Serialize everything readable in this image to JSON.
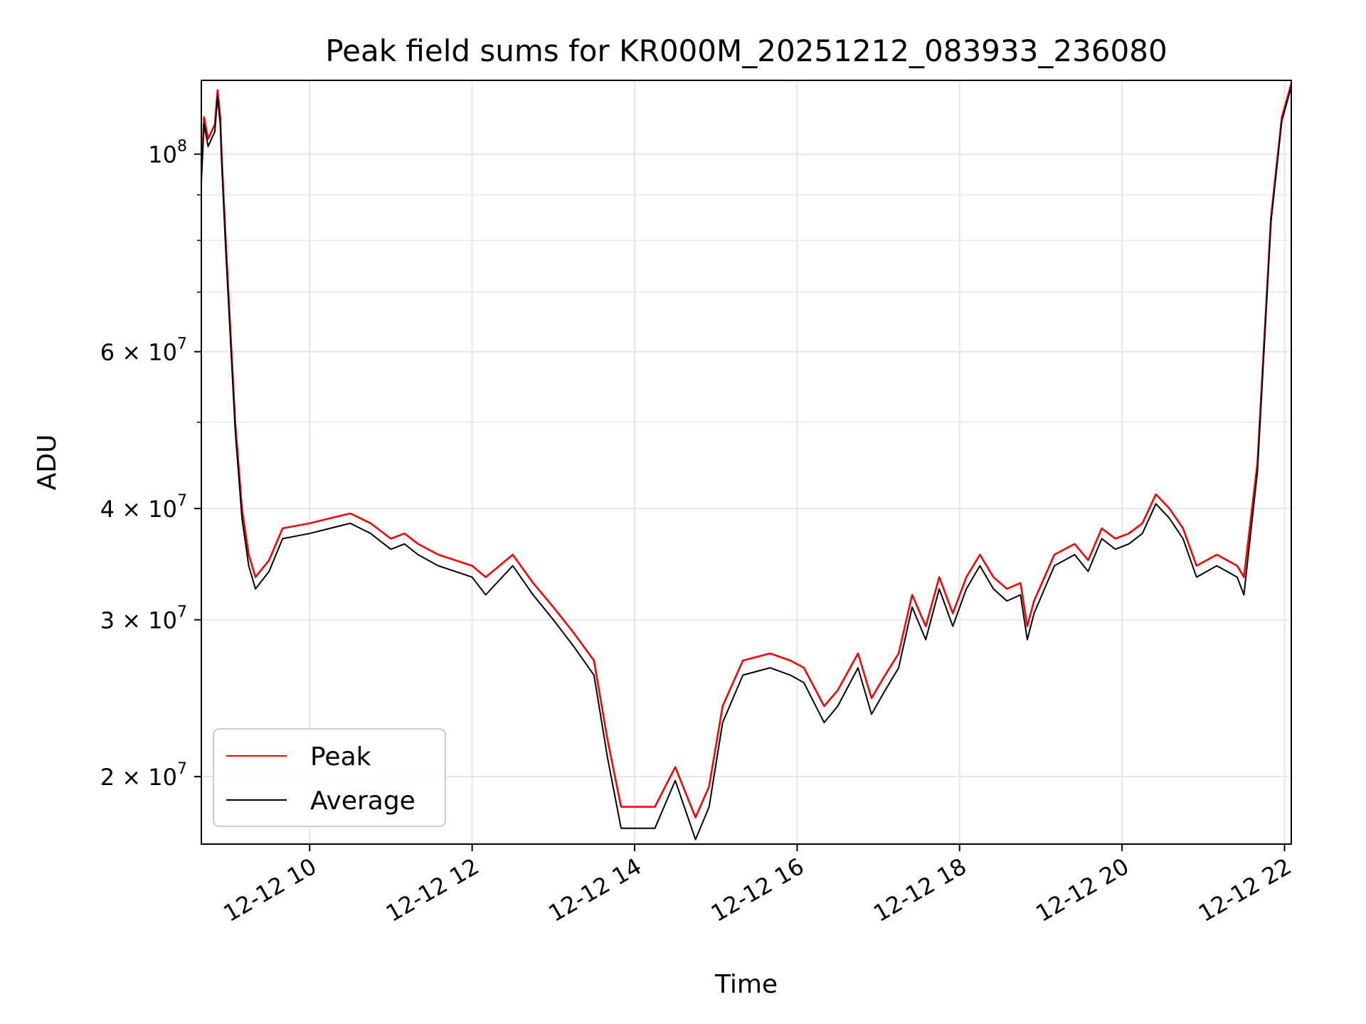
{
  "chart_data": {
    "type": "line",
    "title": "Peak field sums for KR000M_20251212_083933_236080",
    "xlabel": "Time",
    "ylabel": "ADU",
    "x_scale": "time",
    "y_scale": "log",
    "xlim": [
      "2025-12-12T08:40",
      "2025-12-12T22:05"
    ],
    "ylim": [
      16800000,
      121000000
    ],
    "grid": true,
    "legend_position": "lower-left",
    "x_ticks": [
      {
        "value": "2025-12-12T10:00",
        "label": "12-12 10"
      },
      {
        "value": "2025-12-12T12:00",
        "label": "12-12 12"
      },
      {
        "value": "2025-12-12T14:00",
        "label": "12-12 14"
      },
      {
        "value": "2025-12-12T16:00",
        "label": "12-12 16"
      },
      {
        "value": "2025-12-12T18:00",
        "label": "12-12 18"
      },
      {
        "value": "2025-12-12T20:00",
        "label": "12-12 20"
      },
      {
        "value": "2025-12-12T22:00",
        "label": "12-12 22"
      }
    ],
    "y_ticks": [
      {
        "value": 100000000,
        "mantissa": "",
        "base": "10",
        "exp": "8"
      },
      {
        "value": 60000000,
        "mantissa": "6 × ",
        "base": "10",
        "exp": "7"
      },
      {
        "value": 40000000,
        "mantissa": "4 × ",
        "base": "10",
        "exp": "7"
      },
      {
        "value": 30000000,
        "mantissa": "3 × ",
        "base": "10",
        "exp": "7"
      },
      {
        "value": 20000000,
        "mantissa": "2 × ",
        "base": "10",
        "exp": "7"
      }
    ],
    "y_minor_ticks": [
      50000000,
      70000000,
      80000000,
      90000000
    ],
    "series": [
      {
        "name": "Peak",
        "color": "#ff0000",
        "x": [
          "2025-12-12T08:40",
          "2025-12-12T08:42",
          "2025-12-12T08:45",
          "2025-12-12T08:50",
          "2025-12-12T08:52",
          "2025-12-12T08:54",
          "2025-12-12T08:55",
          "2025-12-12T08:58",
          "2025-12-12T09:05",
          "2025-12-12T09:10",
          "2025-12-12T09:15",
          "2025-12-12T09:20",
          "2025-12-12T09:30",
          "2025-12-12T09:40",
          "2025-12-12T10:00",
          "2025-12-12T10:15",
          "2025-12-12T10:30",
          "2025-12-12T10:45",
          "2025-12-12T11:00",
          "2025-12-12T11:10",
          "2025-12-12T11:20",
          "2025-12-12T11:35",
          "2025-12-12T12:00",
          "2025-12-12T12:10",
          "2025-12-12T12:30",
          "2025-12-12T12:45",
          "2025-12-12T13:00",
          "2025-12-12T13:15",
          "2025-12-12T13:30",
          "2025-12-12T13:40",
          "2025-12-12T13:50",
          "2025-12-12T14:00",
          "2025-12-12T14:15",
          "2025-12-12T14:30",
          "2025-12-12T14:45",
          "2025-12-12T14:55",
          "2025-12-12T15:05",
          "2025-12-12T15:20",
          "2025-12-12T15:40",
          "2025-12-12T15:55",
          "2025-12-12T16:05",
          "2025-12-12T16:20",
          "2025-12-12T16:30",
          "2025-12-12T16:45",
          "2025-12-12T16:55",
          "2025-12-12T17:05",
          "2025-12-12T17:15",
          "2025-12-12T17:25",
          "2025-12-12T17:35",
          "2025-12-12T17:45",
          "2025-12-12T17:55",
          "2025-12-12T18:05",
          "2025-12-12T18:15",
          "2025-12-12T18:25",
          "2025-12-12T18:35",
          "2025-12-12T18:45",
          "2025-12-12T18:50",
          "2025-12-12T18:55",
          "2025-12-12T19:10",
          "2025-12-12T19:25",
          "2025-12-12T19:35",
          "2025-12-12T19:45",
          "2025-12-12T19:55",
          "2025-12-12T20:05",
          "2025-12-12T20:15",
          "2025-12-12T20:25",
          "2025-12-12T20:35",
          "2025-12-12T20:45",
          "2025-12-12T20:55",
          "2025-12-12T21:10",
          "2025-12-12T21:25",
          "2025-12-12T21:30",
          "2025-12-12T21:40",
          "2025-12-12T21:50",
          "2025-12-12T21:58",
          "2025-12-12T22:05"
        ],
        "values": [
          95000000,
          110000000,
          104000000,
          108000000,
          118000000,
          110000000,
          100000000,
          80000000,
          50000000,
          40000000,
          35500000,
          33500000,
          35000000,
          38000000,
          38500000,
          39000000,
          39500000,
          38500000,
          37000000,
          37500000,
          36500000,
          35500000,
          34500000,
          33500000,
          35500000,
          33000000,
          31000000,
          29000000,
          27000000,
          22000000,
          18500000,
          18500000,
          18500000,
          20500000,
          18000000,
          19500000,
          24000000,
          27000000,
          27500000,
          27000000,
          26500000,
          24000000,
          25000000,
          27500000,
          24500000,
          26000000,
          27500000,
          32000000,
          29500000,
          33500000,
          30500000,
          33500000,
          35500000,
          33500000,
          32500000,
          33000000,
          29500000,
          31500000,
          35500000,
          36500000,
          35000000,
          38000000,
          37000000,
          37500000,
          38500000,
          41500000,
          40000000,
          38000000,
          34500000,
          35500000,
          34500000,
          33500000,
          45000000,
          85000000,
          110000000,
          120000000
        ]
      },
      {
        "name": "Average",
        "color": "#000000",
        "x": [
          "2025-12-12T08:40",
          "2025-12-12T08:42",
          "2025-12-12T08:45",
          "2025-12-12T08:50",
          "2025-12-12T08:52",
          "2025-12-12T08:54",
          "2025-12-12T08:55",
          "2025-12-12T08:58",
          "2025-12-12T09:05",
          "2025-12-12T09:10",
          "2025-12-12T09:15",
          "2025-12-12T09:20",
          "2025-12-12T09:30",
          "2025-12-12T09:40",
          "2025-12-12T10:00",
          "2025-12-12T10:15",
          "2025-12-12T10:30",
          "2025-12-12T10:45",
          "2025-12-12T11:00",
          "2025-12-12T11:10",
          "2025-12-12T11:20",
          "2025-12-12T11:35",
          "2025-12-12T12:00",
          "2025-12-12T12:10",
          "2025-12-12T12:30",
          "2025-12-12T12:45",
          "2025-12-12T13:00",
          "2025-12-12T13:15",
          "2025-12-12T13:30",
          "2025-12-12T13:40",
          "2025-12-12T13:50",
          "2025-12-12T14:00",
          "2025-12-12T14:15",
          "2025-12-12T14:30",
          "2025-12-12T14:45",
          "2025-12-12T14:55",
          "2025-12-12T15:05",
          "2025-12-12T15:20",
          "2025-12-12T15:40",
          "2025-12-12T15:55",
          "2025-12-12T16:05",
          "2025-12-12T16:20",
          "2025-12-12T16:30",
          "2025-12-12T16:45",
          "2025-12-12T16:55",
          "2025-12-12T17:05",
          "2025-12-12T17:15",
          "2025-12-12T17:25",
          "2025-12-12T17:35",
          "2025-12-12T17:45",
          "2025-12-12T17:55",
          "2025-12-12T18:05",
          "2025-12-12T18:15",
          "2025-12-12T18:25",
          "2025-12-12T18:35",
          "2025-12-12T18:45",
          "2025-12-12T18:50",
          "2025-12-12T18:55",
          "2025-12-12T19:10",
          "2025-12-12T19:25",
          "2025-12-12T19:35",
          "2025-12-12T19:45",
          "2025-12-12T19:55",
          "2025-12-12T20:05",
          "2025-12-12T20:15",
          "2025-12-12T20:25",
          "2025-12-12T20:35",
          "2025-12-12T20:45",
          "2025-12-12T20:55",
          "2025-12-12T21:10",
          "2025-12-12T21:25",
          "2025-12-12T21:30",
          "2025-12-12T21:40",
          "2025-12-12T21:50",
          "2025-12-12T21:58",
          "2025-12-12T22:05"
        ],
        "values": [
          93000000,
          108000000,
          102000000,
          106000000,
          116000000,
          108000000,
          98000000,
          78000000,
          49000000,
          39000000,
          34500000,
          32500000,
          34000000,
          37000000,
          37500000,
          38000000,
          38500000,
          37500000,
          36000000,
          36500000,
          35500000,
          34500000,
          33500000,
          32000000,
          34500000,
          32000000,
          30000000,
          28000000,
          26000000,
          21000000,
          17500000,
          17500000,
          17500000,
          19800000,
          17000000,
          18500000,
          23000000,
          26000000,
          26500000,
          26000000,
          25500000,
          23000000,
          24000000,
          26500000,
          23500000,
          25000000,
          26500000,
          31000000,
          28500000,
          32500000,
          29500000,
          32500000,
          34500000,
          32500000,
          31500000,
          32000000,
          28500000,
          30500000,
          34500000,
          35500000,
          34000000,
          37000000,
          36000000,
          36500000,
          37500000,
          40500000,
          39000000,
          37000000,
          33500000,
          34500000,
          33500000,
          32000000,
          44000000,
          84000000,
          109000000,
          119000000
        ]
      }
    ]
  }
}
